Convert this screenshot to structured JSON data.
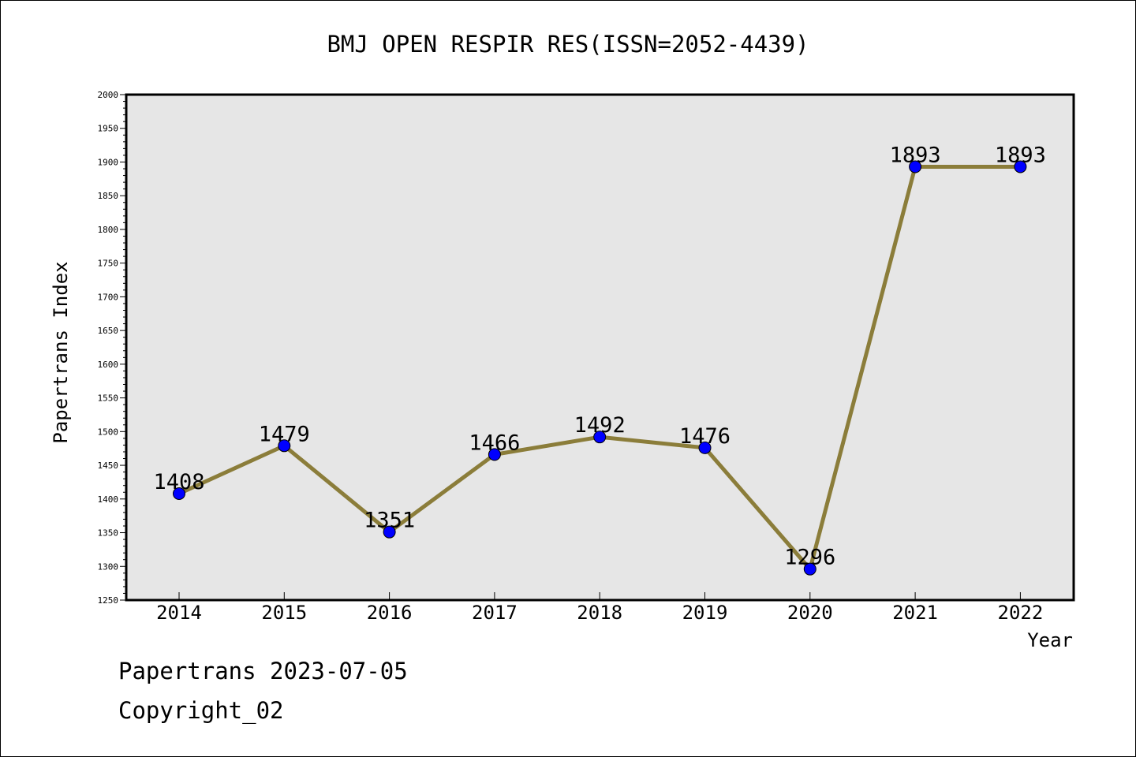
{
  "chart_data": {
    "type": "line",
    "title": "BMJ OPEN RESPIR RES(ISSN=2052-4439)",
    "xlabel": "Year",
    "ylabel": "Papertrans Index",
    "categories": [
      "2014",
      "2015",
      "2016",
      "2017",
      "2018",
      "2019",
      "2020",
      "2021",
      "2022"
    ],
    "series": [
      {
        "values": [
          1408,
          1479,
          1351,
          1466,
          1492,
          1476,
          1296,
          1893,
          1893
        ]
      }
    ],
    "data_labels": [
      "1408",
      "1479",
      "1351",
      "1466",
      "1492",
      "1476",
      "1296",
      "1893",
      "1893"
    ],
    "ylim": [
      1250,
      2000
    ],
    "yticks": [
      1250,
      1300,
      1350,
      1400,
      1450,
      1500,
      1550,
      1600,
      1650,
      1700,
      1750,
      1800,
      1850,
      1900,
      1950,
      2000
    ],
    "grid": false,
    "colors": {
      "line": "#8b7d3a",
      "marker": "#0000ff",
      "plot_background": "#e6e6e6"
    }
  },
  "footer": {
    "date_line": "Papertrans 2023-07-05",
    "copyright": "Copyright_02"
  }
}
